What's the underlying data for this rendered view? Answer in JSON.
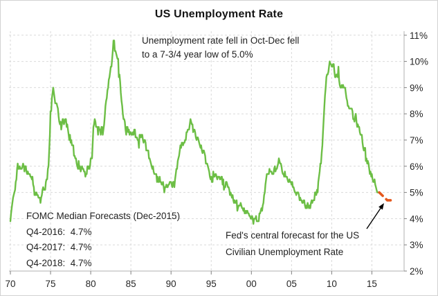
{
  "title": "US Unemployment Rate",
  "annotations": {
    "drop_note": {
      "lines": [
        "Unemployment rate fell in Oct-Dec fell",
        "to a 7-3/4 year low of 5.0%"
      ]
    },
    "fomc": {
      "heading": "FOMC Median Forecasts (Dec-2015)",
      "entries": [
        "Q4-2016:  4.7%",
        "Q4-2017:  4.7%",
        "Q4-2018:  4.7%"
      ]
    },
    "forecast_label": {
      "lines": [
        "Fed's central forecast for the US",
        "Civilian Unemployment Rate"
      ]
    }
  },
  "colors": {
    "history_line": "#6CBE45",
    "forecast_line": "#E4571C",
    "gridline": "#D9D9D9",
    "axis_line": "#BFBFBF",
    "tick_mark": "#7F7F7F",
    "tick_text": "#262626",
    "annotation_text": "#1F1F1F",
    "arrow": "#000000"
  },
  "chart_data": {
    "type": "line",
    "title": "US Unemployment Rate",
    "xlabel": "",
    "ylabel": "",
    "grid": "dashed, both axes",
    "legend_position": "none",
    "x_axis": {
      "tick_labels": [
        "70",
        "75",
        "80",
        "85",
        "90",
        "95",
        "00",
        "05",
        "10",
        "15"
      ],
      "tick_years": [
        1970,
        1975,
        1980,
        1985,
        1990,
        1995,
        2000,
        2005,
        2010,
        2015
      ],
      "range": [
        1970,
        2019
      ]
    },
    "y_axis": {
      "position": "right",
      "unit": "percent",
      "tick_labels": [
        "2%",
        "3%",
        "4%",
        "5%",
        "6%",
        "7%",
        "8%",
        "9%",
        "10%",
        "11%"
      ],
      "tick_values": [
        2,
        3,
        4,
        5,
        6,
        7,
        8,
        9,
        10,
        11
      ],
      "range": [
        2,
        11
      ]
    },
    "series": [
      {
        "name": "US civilian unemployment rate (monthly)",
        "style": "solid",
        "color": "#6CBE45",
        "frequency": "monthly",
        "start_year": 1970,
        "values": [
          3.9,
          4.2,
          4.4,
          4.6,
          4.8,
          4.9,
          5.0,
          5.1,
          5.4,
          5.5,
          5.9,
          6.1,
          5.9,
          5.9,
          6.0,
          5.9,
          5.9,
          5.9,
          6.0,
          6.1,
          6.0,
          5.8,
          6.0,
          6.0,
          5.8,
          5.7,
          5.8,
          5.7,
          5.7,
          5.7,
          5.6,
          5.6,
          5.5,
          5.6,
          5.3,
          5.2,
          4.9,
          5.0,
          4.9,
          5.0,
          4.9,
          4.9,
          4.8,
          4.8,
          4.8,
          4.6,
          4.8,
          4.9,
          5.1,
          5.2,
          5.1,
          5.1,
          5.1,
          5.4,
          5.5,
          5.5,
          5.9,
          6.0,
          6.6,
          7.2,
          8.1,
          8.1,
          8.6,
          8.8,
          9.0,
          8.8,
          8.6,
          8.4,
          8.4,
          8.4,
          8.3,
          8.2,
          7.9,
          7.7,
          7.6,
          7.7,
          7.4,
          7.6,
          7.8,
          7.8,
          7.6,
          7.7,
          7.8,
          7.8,
          7.5,
          7.6,
          7.4,
          7.2,
          7.0,
          7.2,
          6.9,
          7.0,
          6.8,
          6.8,
          6.8,
          6.4,
          6.4,
          6.3,
          6.3,
          6.1,
          6.0,
          5.9,
          6.2,
          5.9,
          6.0,
          5.8,
          5.9,
          6.0,
          5.9,
          5.9,
          5.8,
          5.8,
          5.6,
          5.7,
          5.7,
          6.0,
          5.9,
          6.0,
          5.9,
          6.0,
          6.3,
          6.3,
          6.3,
          6.9,
          7.5,
          7.6,
          7.8,
          7.7,
          7.5,
          7.5,
          7.5,
          7.2,
          7.5,
          7.4,
          7.4,
          7.2,
          7.5,
          7.5,
          7.2,
          7.4,
          7.6,
          7.9,
          8.3,
          8.5,
          8.6,
          8.9,
          9.0,
          9.3,
          9.4,
          9.6,
          9.8,
          9.8,
          10.1,
          10.4,
          10.8,
          10.8,
          10.4,
          10.4,
          10.3,
          10.2,
          10.1,
          10.1,
          9.4,
          9.5,
          9.2,
          8.8,
          8.5,
          8.3,
          8.0,
          7.8,
          7.8,
          7.7,
          7.4,
          7.2,
          7.5,
          7.5,
          7.3,
          7.4,
          7.2,
          7.3,
          7.3,
          7.2,
          7.2,
          7.3,
          7.2,
          7.4,
          7.4,
          7.1,
          7.1,
          7.1,
          7.0,
          7.0,
          6.7,
          7.2,
          7.2,
          7.1,
          7.2,
          7.2,
          7.0,
          6.9,
          7.0,
          7.0,
          6.9,
          6.6,
          6.6,
          6.6,
          6.6,
          6.3,
          6.3,
          6.2,
          6.1,
          6.0,
          5.9,
          6.0,
          5.8,
          5.7,
          5.7,
          5.7,
          5.7,
          5.4,
          5.6,
          5.4,
          5.4,
          5.6,
          5.4,
          5.4,
          5.3,
          5.3,
          5.4,
          5.2,
          5.0,
          5.2,
          5.2,
          5.3,
          5.2,
          5.2,
          5.3,
          5.3,
          5.4,
          5.4,
          5.4,
          5.3,
          5.2,
          5.4,
          5.4,
          5.2,
          5.5,
          5.7,
          5.9,
          5.9,
          6.2,
          6.3,
          6.4,
          6.6,
          6.8,
          6.7,
          6.9,
          6.9,
          6.8,
          6.9,
          6.9,
          7.0,
          7.0,
          7.3,
          7.3,
          7.4,
          7.4,
          7.4,
          7.6,
          7.8,
          7.7,
          7.6,
          7.6,
          7.3,
          7.4,
          7.4,
          7.3,
          7.1,
          7.0,
          7.1,
          7.1,
          7.0,
          6.9,
          6.8,
          6.7,
          6.8,
          6.6,
          6.5,
          6.6,
          6.6,
          6.5,
          6.4,
          6.1,
          6.1,
          6.1,
          6.0,
          5.9,
          5.8,
          5.6,
          5.5,
          5.6,
          5.4,
          5.4,
          5.8,
          5.6,
          5.6,
          5.7,
          5.7,
          5.6,
          5.5,
          5.6,
          5.6,
          5.6,
          5.5,
          5.5,
          5.6,
          5.6,
          5.3,
          5.5,
          5.1,
          5.2,
          5.2,
          5.4,
          5.4,
          5.3,
          5.2,
          5.2,
          5.1,
          4.9,
          5.0,
          4.9,
          4.8,
          4.9,
          4.7,
          4.6,
          4.7,
          4.6,
          4.6,
          4.7,
          4.3,
          4.4,
          4.5,
          4.5,
          4.5,
          4.6,
          4.5,
          4.4,
          4.4,
          4.3,
          4.4,
          4.2,
          4.3,
          4.2,
          4.3,
          4.3,
          4.2,
          4.2,
          4.1,
          4.1,
          4.0,
          4.0,
          4.1,
          4.0,
          3.8,
          4.0,
          4.0,
          4.0,
          4.1,
          3.9,
          3.9,
          3.9,
          3.9,
          4.2,
          4.2,
          4.3,
          4.4,
          4.3,
          4.5,
          4.6,
          4.9,
          5.0,
          5.3,
          5.5,
          5.7,
          5.7,
          5.7,
          5.7,
          5.9,
          5.8,
          5.8,
          5.8,
          5.7,
          5.7,
          5.7,
          5.9,
          6.0,
          5.8,
          5.9,
          5.9,
          6.0,
          6.1,
          6.3,
          6.2,
          6.1,
          6.1,
          6.0,
          5.8,
          5.7,
          5.7,
          5.6,
          5.8,
          5.6,
          5.6,
          5.6,
          5.5,
          5.4,
          5.4,
          5.5,
          5.4,
          5.4,
          5.3,
          5.4,
          5.2,
          5.2,
          5.1,
          5.0,
          5.0,
          4.9,
          5.0,
          5.0,
          5.0,
          4.9,
          4.7,
          4.8,
          4.7,
          4.7,
          4.6,
          4.6,
          4.7,
          4.7,
          4.5,
          4.4,
          4.5,
          4.4,
          4.6,
          4.5,
          4.4,
          4.5,
          4.4,
          4.6,
          4.7,
          4.6,
          4.7,
          4.7,
          4.7,
          5.0,
          5.0,
          4.9,
          5.1,
          5.0,
          5.4,
          5.6,
          5.8,
          6.1,
          6.1,
          6.5,
          6.8,
          7.3,
          7.8,
          8.3,
          8.7,
          9.0,
          9.4,
          9.5,
          9.5,
          9.6,
          9.8,
          10.0,
          9.9,
          9.9,
          9.8,
          9.8,
          9.9,
          9.9,
          9.6,
          9.4,
          9.4,
          9.5,
          9.5,
          9.4,
          9.8,
          9.3,
          9.1,
          9.0,
          9.0,
          9.1,
          9.0,
          9.1,
          9.0,
          9.0,
          9.0,
          8.8,
          8.6,
          8.5,
          8.3,
          8.3,
          8.2,
          8.2,
          8.2,
          8.2,
          8.2,
          8.1,
          7.8,
          7.8,
          7.7,
          7.9,
          8.0,
          7.7,
          7.5,
          7.6,
          7.5,
          7.5,
          7.3,
          7.2,
          7.2,
          7.2,
          6.9,
          6.7,
          6.6,
          6.7,
          6.7,
          6.2,
          6.3,
          6.1,
          6.2,
          6.1,
          5.9,
          5.7,
          5.8,
          5.6,
          5.7,
          5.5,
          5.4,
          5.4,
          5.5,
          5.3,
          5.2,
          5.1,
          5.0,
          5.0,
          5.0,
          5.0
        ]
      },
      {
        "name": "Fed central forecast (FOMC median, Dec-2015)",
        "style": "dashed",
        "color": "#E4571C",
        "points": [
          {
            "x": 2015.92,
            "value": 5.0
          },
          {
            "x": 2016.92,
            "value": 4.7
          },
          {
            "x": 2017.9,
            "value": 4.7
          }
        ]
      }
    ],
    "forecasts": [
      {
        "period": "Q4-2016",
        "value": "4.7%"
      },
      {
        "period": "Q4-2017",
        "value": "4.7%"
      },
      {
        "period": "Q4-2018",
        "value": "4.7%"
      }
    ],
    "last_observation": {
      "date": "Dec-2015",
      "value": "5.0%"
    }
  }
}
